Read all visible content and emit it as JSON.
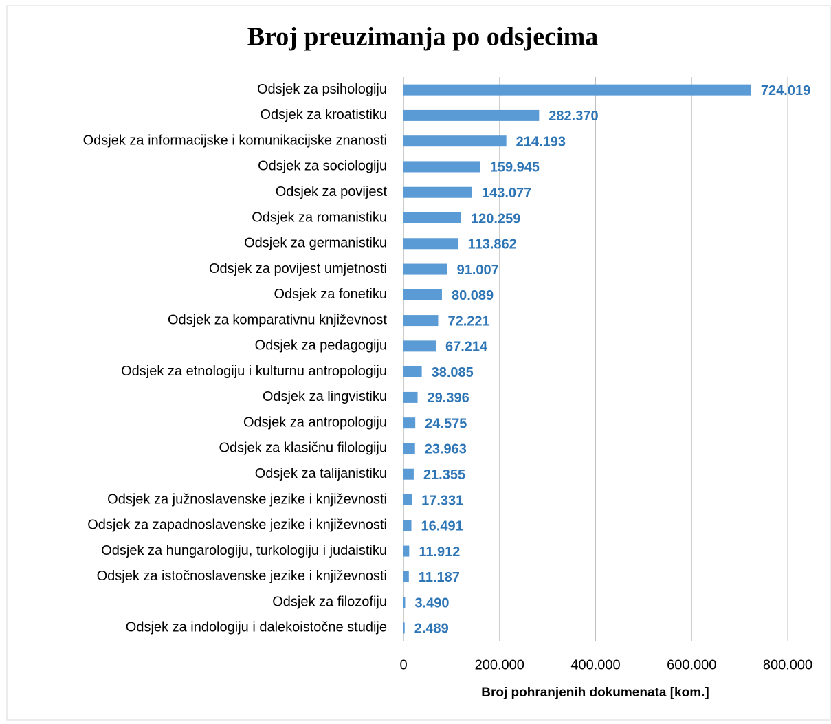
{
  "chart_data": {
    "type": "bar",
    "orientation": "horizontal",
    "title": "Broj preuzimanja po odsjecima",
    "xlabel": "Broj pohranjenih dokumenata [kom.]",
    "categories": [
      "Odsjek za psihologiju",
      "Odsjek za kroatistiku",
      "Odsjek za informacijske i komunikacijske znanosti",
      "Odsjek za sociologiju",
      "Odsjek za povijest",
      "Odsjek za romanistiku",
      "Odsjek za germanistiku",
      "Odsjek za povijest umjetnosti",
      "Odsjek za fonetiku",
      "Odsjek za komparativnu književnost",
      "Odsjek za pedagogiju",
      "Odsjek za etnologiju i kulturnu antropologiju",
      "Odsjek za lingvistiku",
      "Odsjek za antropologiju",
      "Odsjek za klasičnu filologiju",
      "Odsjek za talijanistiku",
      "Odsjek za južnoslavenske jezike i književnosti",
      "Odsjek za zapadnoslavenske jezike i književnosti",
      "Odsjek za hungarologiju, turkologiju i judaistiku",
      "Odsjek za istočnoslavenske jezike i književnosti",
      "Odsjek za filozofiju",
      "Odsjek za indologiju i dalekoistočne studije"
    ],
    "values": [
      724019,
      282370,
      214193,
      159945,
      143077,
      120259,
      113862,
      91007,
      80089,
      72221,
      67214,
      38085,
      29396,
      24575,
      23963,
      21355,
      17331,
      16491,
      11912,
      11187,
      3490,
      2489
    ],
    "value_labels": [
      "724.019",
      "282.370",
      "214.193",
      "159.945",
      "143.077",
      "120.259",
      "113.862",
      "91.007",
      "80.089",
      "72.221",
      "67.214",
      "38.085",
      "29.396",
      "24.575",
      "23.963",
      "21.355",
      "17.331",
      "16.491",
      "11.912",
      "11.187",
      "3.490",
      "2.489"
    ],
    "color": "#5b9bd5",
    "label_color": "#2e75b6",
    "xlim": [
      0,
      800000
    ],
    "xticks": [
      0,
      {
        "value": 200000,
        "label": "200.000"
      },
      {
        "value": 400000,
        "label": "400.000"
      },
      {
        "value": 600000,
        "label": "600.000"
      },
      {
        "value": 800000,
        "label": "800.000"
      }
    ],
    "grid": true
  }
}
